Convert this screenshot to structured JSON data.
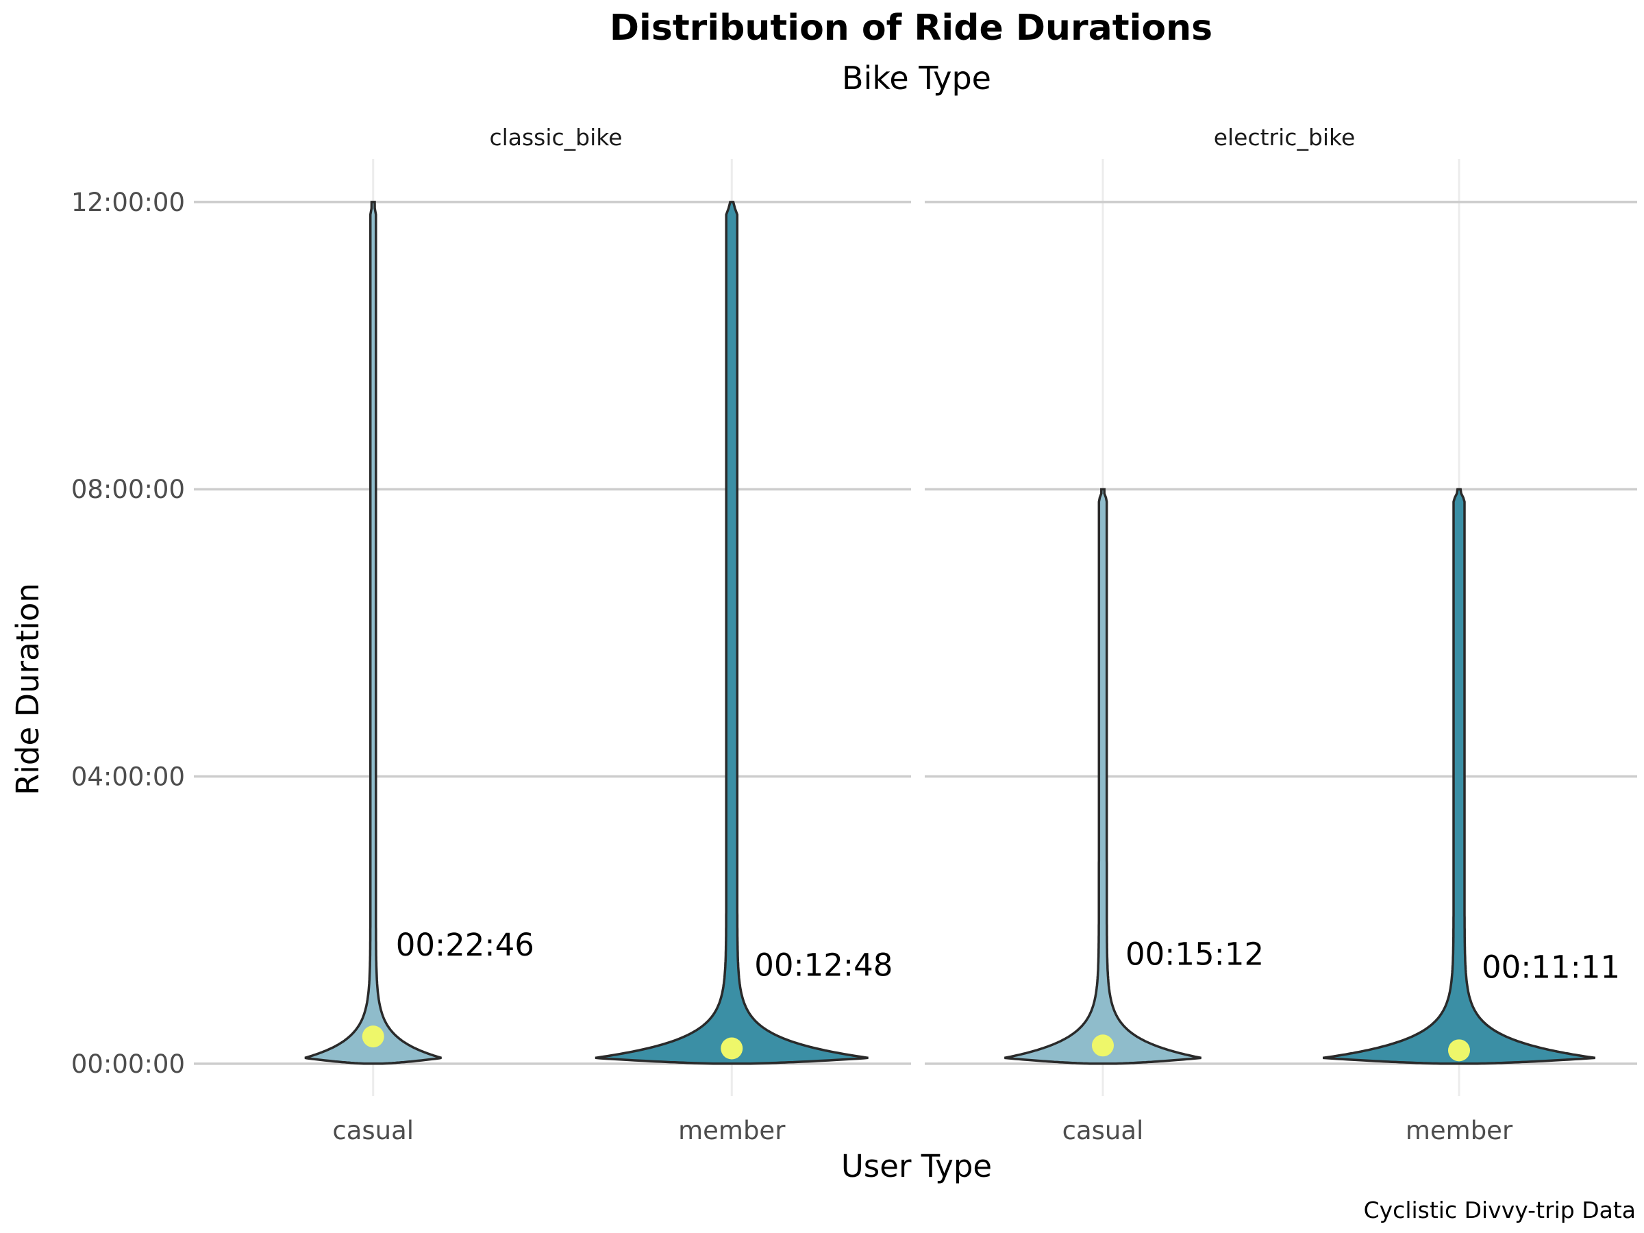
{
  "chart_data": {
    "type": "violin",
    "title": "Distribution of Ride Durations",
    "subtitle": "Bike Type",
    "xlabel": "User Type",
    "ylabel": "Ride Duration",
    "caption": "Cyclistic Divvy-trip Data",
    "y_unit": "hours",
    "ylim": [
      -0.45,
      12.6
    ],
    "y_ticks": [
      {
        "value": 0,
        "label": "00:00:00"
      },
      {
        "value": 4,
        "label": "04:00:00"
      },
      {
        "value": 8,
        "label": "08:00:00"
      },
      {
        "value": 12,
        "label": "12:00:00"
      }
    ],
    "categories": [
      "casual",
      "member"
    ],
    "grid": true,
    "legend": "none",
    "colors": {
      "casual": "#8fbccb",
      "member": "#3b8fa5",
      "mean_point": "#eef76a",
      "outline": "#2a2a2a"
    },
    "facets": [
      {
        "name": "classic_bike",
        "violins": [
          {
            "category": "casual",
            "max": 12.0,
            "mean": 0.379,
            "mean_label": "00:22:46",
            "width": 0.45
          },
          {
            "category": "member",
            "max": 12.0,
            "mean": 0.213,
            "mean_label": "00:12:48",
            "width": 0.9
          }
        ]
      },
      {
        "name": "electric_bike",
        "violins": [
          {
            "category": "casual",
            "max": 8.0,
            "mean": 0.253,
            "mean_label": "00:15:12",
            "width": 0.65
          },
          {
            "category": "member",
            "max": 8.0,
            "mean": 0.186,
            "mean_label": "00:11:11",
            "width": 0.9
          }
        ]
      }
    ]
  }
}
